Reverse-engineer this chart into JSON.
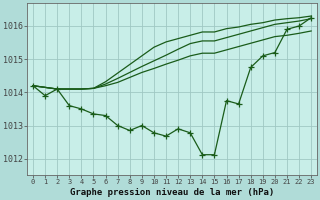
{
  "background_color": "#b0dcd8",
  "plot_bg_color": "#c8eee8",
  "grid_color": "#a0c8c4",
  "line_color": "#1a5c1a",
  "title": "Graphe pression niveau de la mer (hPa)",
  "xlim": [
    -0.5,
    23.5
  ],
  "ylim": [
    1011.5,
    1016.7
  ],
  "yticks": [
    1012,
    1013,
    1014,
    1015,
    1016
  ],
  "xticks": [
    0,
    1,
    2,
    3,
    4,
    5,
    6,
    7,
    8,
    9,
    10,
    11,
    12,
    13,
    14,
    15,
    16,
    17,
    18,
    19,
    20,
    21,
    22,
    23
  ],
  "series_jagged_x": [
    0,
    1,
    2,
    3,
    4,
    5,
    6,
    7,
    8,
    9,
    10,
    11,
    12,
    13,
    14,
    15,
    16,
    17,
    18,
    19,
    20,
    21,
    22,
    23
  ],
  "series_jagged_y": [
    1014.2,
    1013.9,
    1014.1,
    1013.6,
    1013.5,
    1013.35,
    1013.3,
    1013.0,
    1012.85,
    1013.0,
    1012.78,
    1012.68,
    1012.9,
    1012.78,
    1012.12,
    1012.12,
    1013.75,
    1013.65,
    1014.75,
    1015.1,
    1015.2,
    1015.9,
    1016.0,
    1016.25
  ],
  "smooth_lines": [
    [
      1014.2,
      1014.15,
      1014.1,
      1014.1,
      1014.1,
      1014.12,
      1014.2,
      1014.3,
      1014.45,
      1014.6,
      1014.72,
      1014.85,
      1014.97,
      1015.1,
      1015.18,
      1015.18,
      1015.28,
      1015.38,
      1015.48,
      1015.58,
      1015.68,
      1015.72,
      1015.78,
      1015.85
    ],
    [
      1014.2,
      1014.15,
      1014.1,
      1014.1,
      1014.1,
      1014.12,
      1014.25,
      1014.42,
      1014.6,
      1014.78,
      1014.95,
      1015.12,
      1015.3,
      1015.47,
      1015.55,
      1015.55,
      1015.65,
      1015.75,
      1015.85,
      1015.95,
      1016.05,
      1016.1,
      1016.15,
      1016.22
    ],
    [
      1014.2,
      1014.15,
      1014.1,
      1014.1,
      1014.1,
      1014.12,
      1014.32,
      1014.58,
      1014.84,
      1015.1,
      1015.36,
      1015.52,
      1015.62,
      1015.72,
      1015.82,
      1015.82,
      1015.92,
      1015.97,
      1016.05,
      1016.1,
      1016.18,
      1016.22,
      1016.25,
      1016.3
    ]
  ]
}
